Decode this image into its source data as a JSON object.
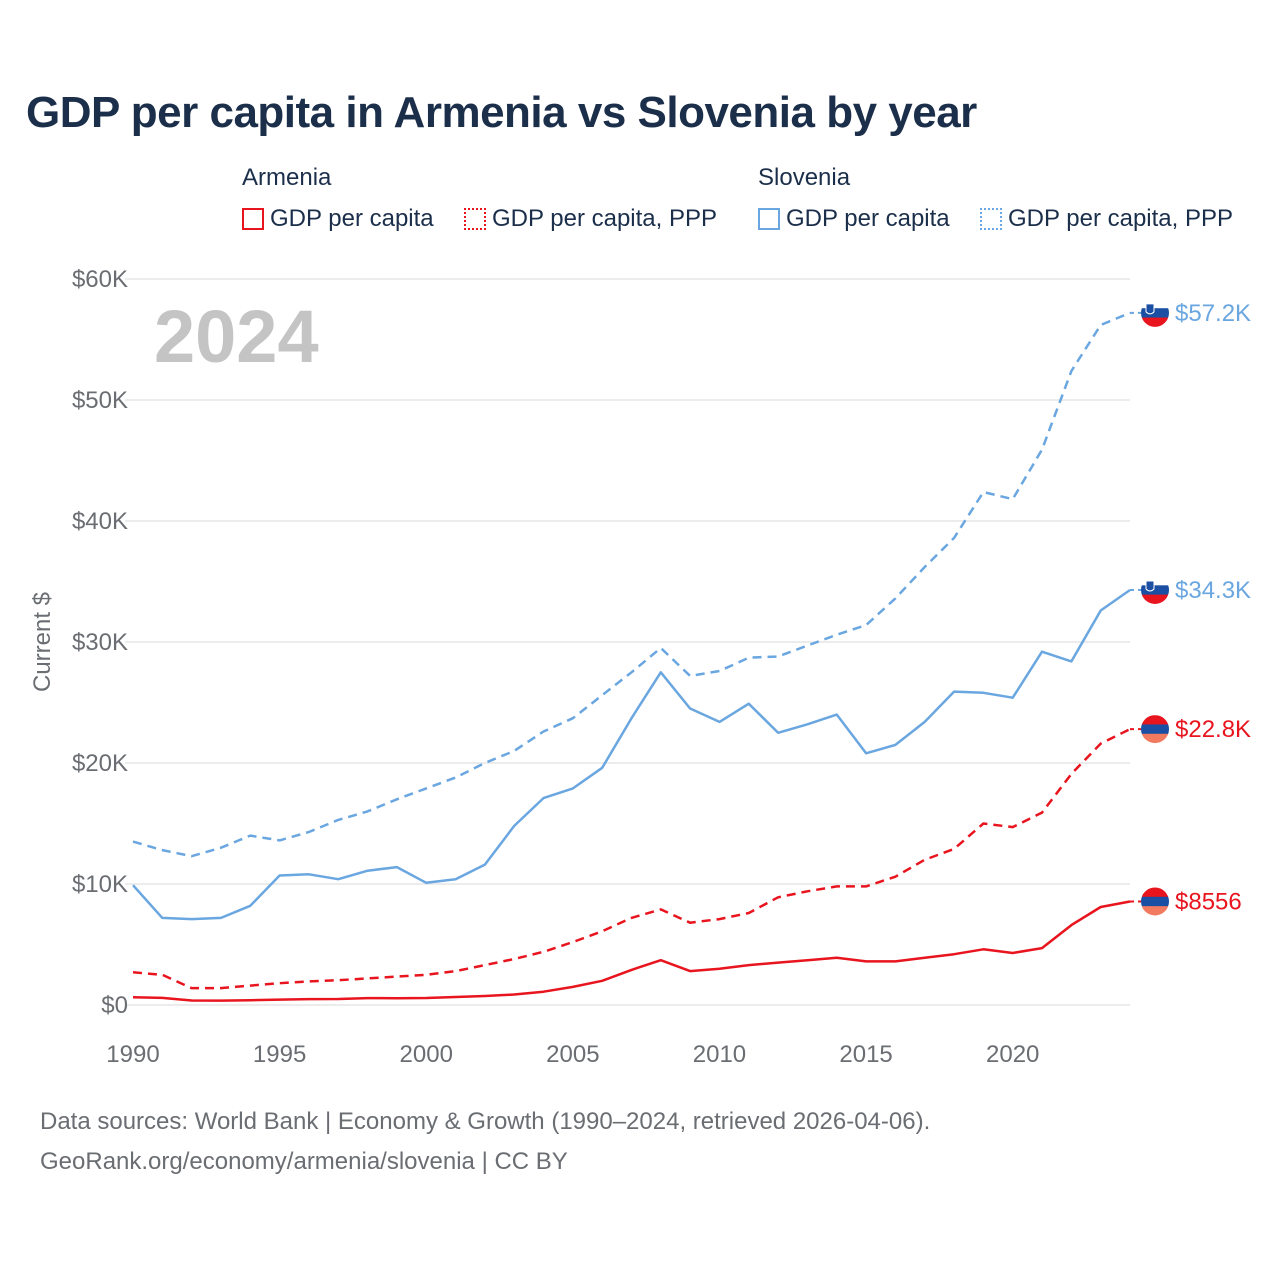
{
  "title": "GDP per capita in Armenia vs Slovenia by year",
  "legend": {
    "armenia_label": "Armenia",
    "slovenia_label": "Slovenia",
    "armenia_gdp": "GDP per capita",
    "armenia_ppp": "GDP per capita, PPP",
    "slovenia_gdp": "GDP per capita",
    "slovenia_ppp": "GDP per capita, PPP"
  },
  "footer": {
    "line1": "Data sources: World Bank | Economy & Growth (1990–2024, retrieved 2026-04-06).",
    "line2": "GeoRank.org/economy/armenia/slovenia | CC BY"
  },
  "colors": {
    "armenia": "#e8141e",
    "slovenia": "#6aa6e0",
    "grid": "#e6e6e6",
    "axis_text": "#6a6d72",
    "year_watermark": "#c4c4c4"
  },
  "chart_data": {
    "type": "line",
    "title": "GDP per capita in Armenia vs Slovenia by year",
    "ylabel": "Current $",
    "xlabel": "",
    "year_label": "2024",
    "x": [
      1990,
      1991,
      1992,
      1993,
      1994,
      1995,
      1996,
      1997,
      1998,
      1999,
      2000,
      2001,
      2002,
      2003,
      2004,
      2005,
      2006,
      2007,
      2008,
      2009,
      2010,
      2011,
      2012,
      2013,
      2014,
      2015,
      2016,
      2017,
      2018,
      2019,
      2020,
      2021,
      2022,
      2023,
      2024
    ],
    "xlim": [
      1990,
      2024
    ],
    "ylim": [
      0,
      60000
    ],
    "x_ticks": [
      1990,
      1995,
      2000,
      2005,
      2010,
      2015,
      2020
    ],
    "y_ticks": [
      {
        "value": 0,
        "label": "$0"
      },
      {
        "value": 10000,
        "label": "$10K"
      },
      {
        "value": 20000,
        "label": "$20K"
      },
      {
        "value": 30000,
        "label": "$30K"
      },
      {
        "value": 40000,
        "label": "$40K"
      },
      {
        "value": 50000,
        "label": "$50K"
      },
      {
        "value": 60000,
        "label": "$60K"
      }
    ],
    "series": [
      {
        "name": "Slovenia GDP per capita, PPP",
        "country": "slovenia",
        "dash": true,
        "end_label": "$57.2K",
        "values": [
          13500,
          12800,
          12300,
          13000,
          14000,
          13600,
          14300,
          15300,
          16000,
          17000,
          17900,
          18800,
          20000,
          21000,
          22600,
          23700,
          25600,
          27500,
          29500,
          27200,
          27600,
          28700,
          28800,
          29700,
          30600,
          31400,
          33600,
          36200,
          38600,
          42400,
          41800,
          45900,
          52400,
          56200,
          57200
        ]
      },
      {
        "name": "Slovenia GDP per capita",
        "country": "slovenia",
        "dash": false,
        "end_label": "$34.3K",
        "values": [
          9900,
          7200,
          7100,
          7200,
          8200,
          10700,
          10800,
          10400,
          11100,
          11400,
          10100,
          10400,
          11600,
          14800,
          17100,
          17900,
          19600,
          23700,
          27500,
          24500,
          23400,
          24900,
          22500,
          23200,
          24000,
          20800,
          21500,
          23400,
          25900,
          25800,
          25400,
          29200,
          28400,
          32600,
          34300
        ]
      },
      {
        "name": "Armenia GDP per capita, PPP",
        "country": "armenia",
        "dash": true,
        "end_label": "$22.8K",
        "values": [
          2700,
          2500,
          1400,
          1400,
          1600,
          1800,
          1950,
          2050,
          2200,
          2350,
          2500,
          2800,
          3300,
          3800,
          4400,
          5200,
          6100,
          7200,
          7900,
          6800,
          7100,
          7600,
          8900,
          9400,
          9800,
          9800,
          10600,
          12000,
          12900,
          15000,
          14700,
          15900,
          19100,
          21600,
          22800
        ]
      },
      {
        "name": "Armenia GDP per capita",
        "country": "armenia",
        "dash": false,
        "end_label": "$8556",
        "values": [
          640,
          590,
          370,
          360,
          400,
          450,
          490,
          500,
          570,
          560,
          580,
          660,
          740,
          870,
          1100,
          1500,
          2000,
          2900,
          3700,
          2800,
          3000,
          3300,
          3500,
          3700,
          3900,
          3600,
          3600,
          3900,
          4200,
          4600,
          4300,
          4700,
          6600,
          8100,
          8556
        ]
      }
    ]
  }
}
